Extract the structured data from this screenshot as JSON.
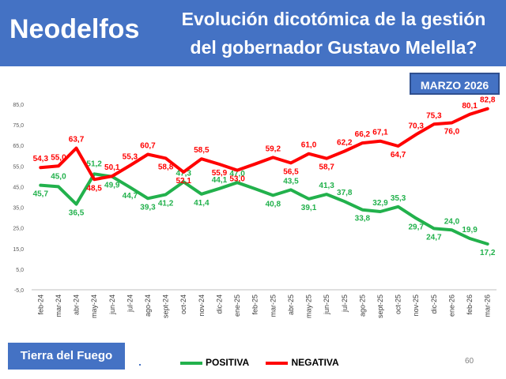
{
  "header": {
    "brand": "Neodelfos",
    "title_line1": "Evolución dicotómica de la gestión",
    "title_line2": "del gobernador Gustavo Melella?"
  },
  "date_badge": "MARZO 2026",
  "region_badge": "Tierra del Fuego",
  "page_number": "60",
  "colors": {
    "header_bg": "#4472c4",
    "positive": "#22b14c",
    "negative": "#ff0000"
  },
  "chart_data": {
    "type": "line",
    "title": "",
    "xlabel": "",
    "ylabel": "",
    "ylim": [
      -5,
      85
    ],
    "y_ticks": [
      "-5,0",
      "5,0",
      "15,0",
      "25,0",
      "35,0",
      "45,0",
      "55,0",
      "65,0",
      "75,0",
      "85,0"
    ],
    "grid": false,
    "legend_position": "bottom",
    "categories": [
      "feb-24",
      "mar-24",
      "abr-24",
      "may-24",
      "jun-24",
      "jul-24",
      "ago-24",
      "sept-24",
      "oct-24",
      "nov-24",
      "dic-24",
      "ene-25",
      "feb-25",
      "mar-25",
      "abr-25",
      "may-25",
      "jun-25",
      "jul-25",
      "ago-25",
      "sept-25",
      "oct-25",
      "nov-25",
      "dic-25",
      "ene-26",
      "feb-26",
      "mar-26"
    ],
    "series": [
      {
        "name": "POSITIVA",
        "color": "#22b14c",
        "values": [
          45.7,
          45.0,
          36.5,
          51.2,
          49.9,
          44.7,
          39.3,
          41.2,
          47.3,
          41.4,
          44.1,
          47.0,
          44.0,
          40.8,
          43.5,
          39.1,
          41.3,
          37.8,
          33.8,
          32.9,
          35.3,
          29.7,
          24.7,
          24.0,
          19.9,
          17.2
        ],
        "labels": [
          "45,7",
          "45,0",
          "36,5",
          "51,2",
          "49,9",
          "44,7",
          "39,3",
          "41,2",
          "47,3",
          "41,4",
          "44,1",
          "47,0",
          "",
          "40,8",
          "43,5",
          "39,1",
          "41,3",
          "37,8",
          "33,8",
          "32,9",
          "35,3",
          "29,7",
          "24,7",
          "24,0",
          "19,9",
          "17,2"
        ]
      },
      {
        "name": "NEGATIVA",
        "color": "#ff0000",
        "values": [
          54.3,
          55.0,
          63.7,
          48.5,
          50.1,
          55.3,
          60.7,
          58.8,
          52.1,
          58.5,
          55.9,
          53.0,
          56.0,
          59.2,
          56.5,
          61.0,
          58.7,
          62.2,
          66.2,
          67.1,
          64.7,
          70.3,
          75.3,
          76.0,
          80.1,
          82.8
        ],
        "labels": [
          "54,3",
          "55,0",
          "63,7",
          "48,5",
          "50,1",
          "55,3",
          "60,7",
          "58,8",
          "52,1",
          "58,5",
          "55,9",
          "53,0",
          "",
          "59,2",
          "56,5",
          "61,0",
          "58,7",
          "62,2",
          "66,2",
          "67,1",
          "64,7",
          "70,3",
          "75,3",
          "76,0",
          "80,1",
          "82,8"
        ]
      }
    ]
  }
}
